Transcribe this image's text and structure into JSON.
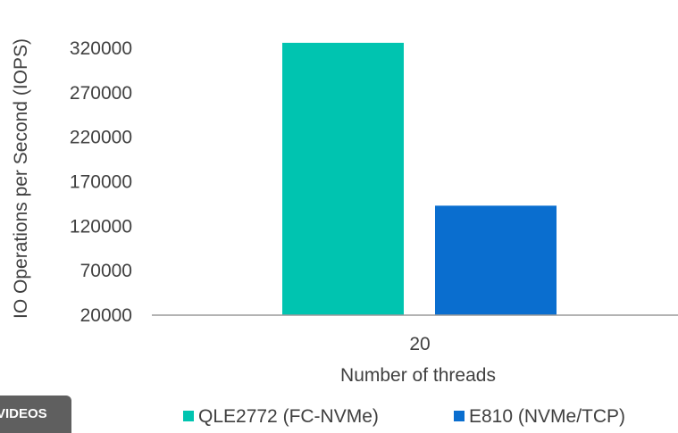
{
  "badge": {
    "label": "VIDEOS"
  },
  "chart_data": {
    "type": "bar",
    "categories": [
      "20"
    ],
    "series": [
      {
        "name": "QLE2772 (FC-NVMe)",
        "values": [
          326000
        ],
        "color": "#00c4b0"
      },
      {
        "name": "E810 (NVMe/TCP)",
        "values": [
          143000
        ],
        "color": "#0a6ecf"
      }
    ],
    "xlabel": "Number of threads",
    "ylabel": "IO Operations per Second (IOPS)",
    "yticks": [
      20000,
      70000,
      120000,
      170000,
      220000,
      270000,
      320000
    ],
    "ylim": [
      20000,
      345000
    ],
    "grid": false,
    "legend_position": "bottom"
  }
}
